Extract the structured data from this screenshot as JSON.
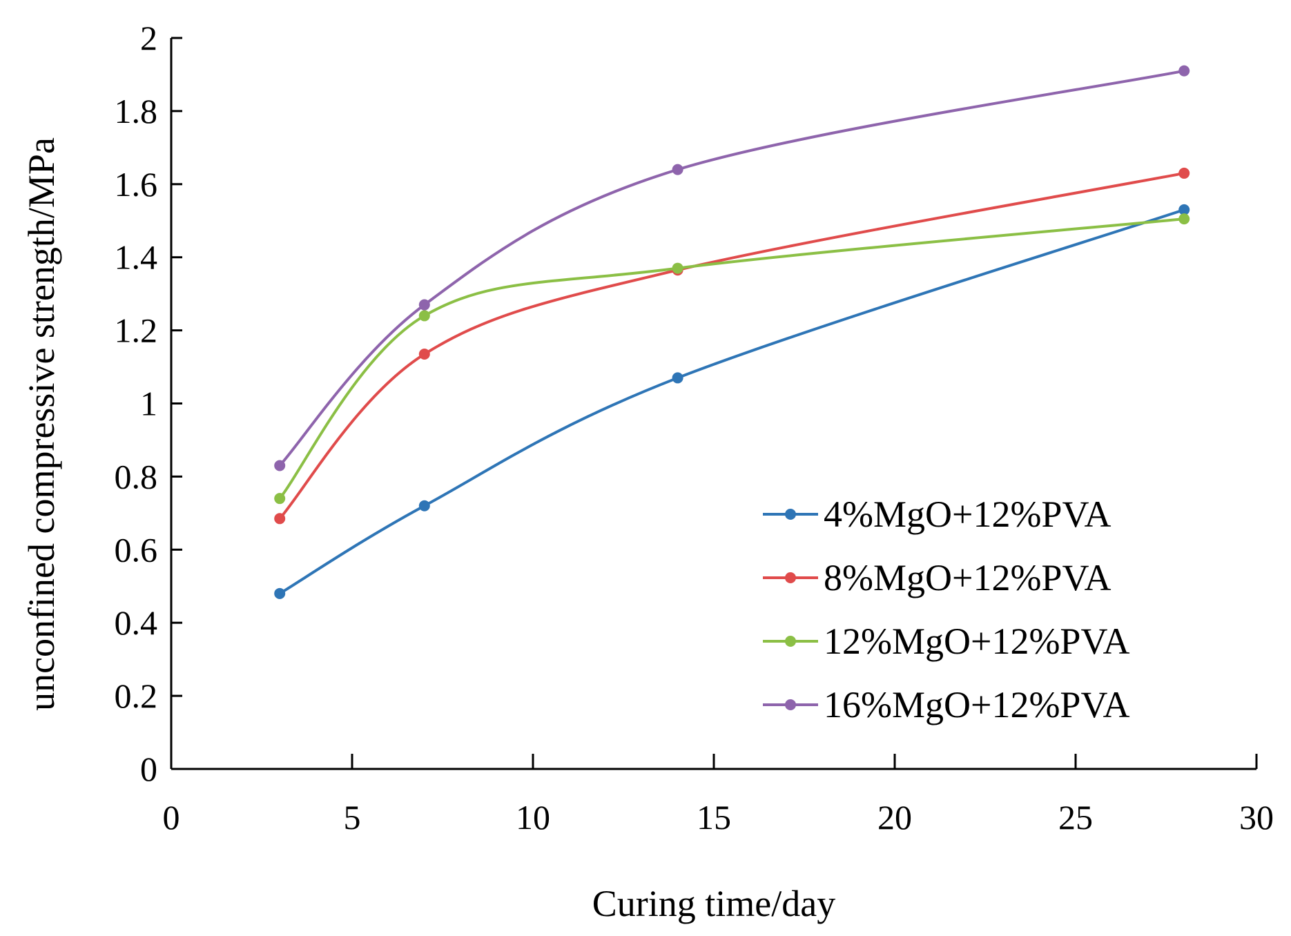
{
  "chart_data": {
    "type": "line",
    "smooth": true,
    "title": "",
    "xlabel": "Curing time/day",
    "ylabel": "unconfined compressive strength/MPa",
    "xlim": [
      0,
      30
    ],
    "ylim": [
      0,
      2
    ],
    "xticks": [
      0,
      5,
      10,
      15,
      20,
      25,
      30
    ],
    "xtick_labels": [
      "0",
      "5",
      "10",
      "15",
      "20",
      "25",
      "30"
    ],
    "yticks": [
      0,
      0.2,
      0.4,
      0.6,
      0.8,
      1,
      1.2,
      1.4,
      1.6,
      1.8,
      2
    ],
    "ytick_labels": [
      "0",
      "0.2",
      "0.4",
      "0.6",
      "0.8",
      "1",
      "1.2",
      "1.4",
      "1.6",
      "1.8",
      "2"
    ],
    "grid": false,
    "legend_position": "right",
    "x": [
      3,
      7,
      14,
      28
    ],
    "series": [
      {
        "name": "4%MgO+12%PVA",
        "color": "#2e75b6",
        "values": [
          0.48,
          0.72,
          1.07,
          1.53
        ]
      },
      {
        "name": "8%MgO+12%PVA",
        "color": "#e04b4b",
        "values": [
          0.685,
          1.135,
          1.365,
          1.63
        ]
      },
      {
        "name": "12%MgO+12%PVA",
        "color": "#8bbf45",
        "values": [
          0.74,
          1.24,
          1.37,
          1.505
        ]
      },
      {
        "name": "16%MgO+12%PVA",
        "color": "#8e64ac",
        "values": [
          0.83,
          1.27,
          1.64,
          1.91
        ]
      }
    ]
  }
}
